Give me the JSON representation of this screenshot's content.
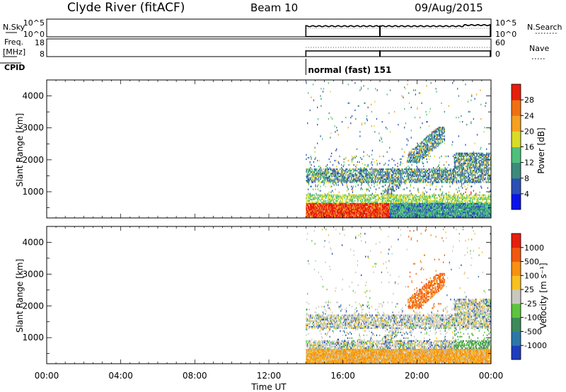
{
  "header": {
    "station": "Clyde River (fitACF)",
    "beam": "Beam 10",
    "date": "09/Aug/2015"
  },
  "chart_data": [
    {
      "type": "line",
      "name": "noise-panel",
      "left_label": "N.Sky",
      "right_label": "N.Search",
      "left_ticks": [
        "10^5",
        "10^0"
      ],
      "right_ticks": [
        "10^5",
        "10^0"
      ],
      "data_start_hour": 14.0,
      "gap_hour": 18.0,
      "end_hour": 24.0
    },
    {
      "type": "line",
      "name": "freq-panel",
      "left_label_top": "Freq.",
      "left_label_bottom": "[MHz]",
      "left_ticks": [
        "18",
        "8"
      ],
      "right_label": "Nave",
      "right_ticks": [
        "60",
        "0"
      ],
      "data_start_hour": 14.0,
      "gap_hour": 18.0,
      "end_hour": 24.0
    },
    {
      "type": "table",
      "name": "cpid-row",
      "label": "CPID",
      "mode_text": "normal (fast) 151",
      "start_hour": 14.0
    },
    {
      "type": "heatmap",
      "name": "power-panel",
      "ylabel": "Slant Range [km]",
      "yticks": [
        1000,
        2000,
        3000,
        4000
      ],
      "ylim": [
        180,
        4500
      ],
      "xlim": [
        0,
        24
      ],
      "colorbar_label": "Power [dB]",
      "colorbar_ticks": [
        "28",
        "24",
        "20",
        "16",
        "12",
        "8",
        "4"
      ],
      "colors": [
        "#0a14e8",
        "#2c4fb6",
        "#3c8a7c",
        "#4ec07c",
        "#d8dc28",
        "#f6a020",
        "#f07010",
        "#e61e0e"
      ],
      "colorbar_min": 0,
      "colorbar_max": 32
    },
    {
      "type": "heatmap",
      "name": "velocity-panel",
      "ylabel": "Slant Range [km]",
      "yticks": [
        1000,
        2000,
        3000,
        4000
      ],
      "ylim": [
        180,
        4500
      ],
      "xlim": [
        0,
        24
      ],
      "colorbar_label": "Velocity [m s⁻¹]",
      "colorbar_ticks": [
        "1000",
        "500",
        "100",
        "25",
        "-25",
        "-100",
        "-500",
        "-1000"
      ],
      "colors": [
        "#1f3cbe",
        "#2a78a8",
        "#3c8a5a",
        "#5dc43c",
        "#c8c8c0",
        "#f8c020",
        "#f89010",
        "#f05810",
        "#e61e0e"
      ],
      "xticks": [
        "00:00",
        "04:00",
        "08:00",
        "12:00",
        "16:00",
        "20:00",
        "00:00"
      ],
      "xlabel": "Time UT"
    }
  ]
}
